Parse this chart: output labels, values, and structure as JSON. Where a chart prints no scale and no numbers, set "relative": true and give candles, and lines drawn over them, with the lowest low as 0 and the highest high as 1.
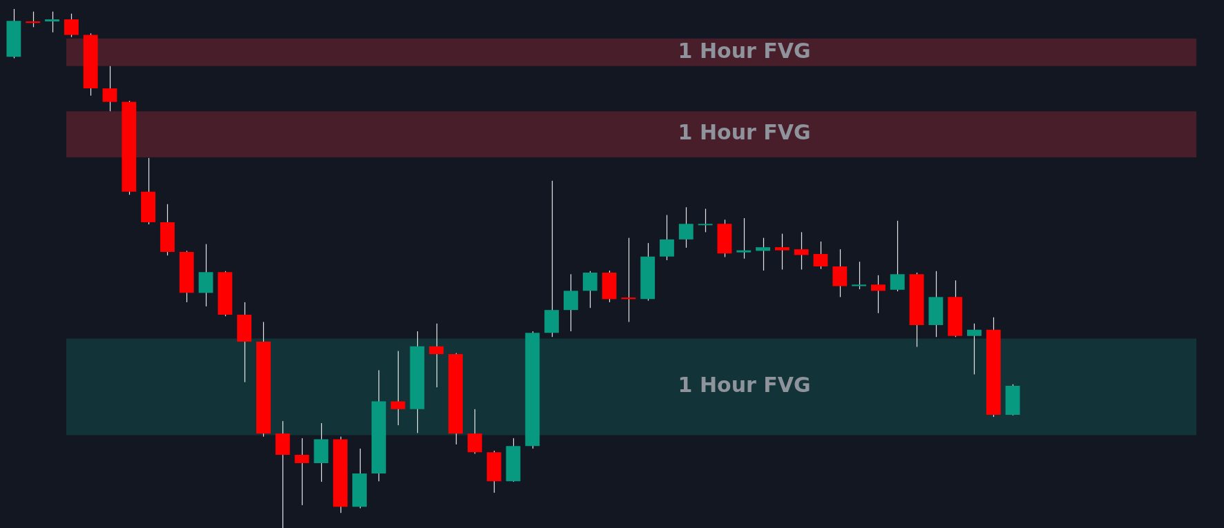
{
  "chart_data": {
    "type": "candlestick",
    "relative": true,
    "categories": [
      null,
      null,
      null,
      null,
      null,
      null,
      null,
      null,
      null,
      null,
      null,
      null,
      null,
      null,
      null,
      null,
      null,
      null,
      null,
      null,
      null,
      null,
      null,
      null,
      null,
      null,
      null,
      null,
      null,
      null,
      null,
      null,
      null,
      null,
      null,
      null,
      null,
      null,
      null,
      null,
      null,
      null,
      null,
      null,
      null,
      null,
      null,
      null,
      null,
      null,
      null,
      null,
      null
    ],
    "ohlc": [
      [
        0.908,
        1.0,
        0.905,
        0.977
      ],
      [
        0.976,
        0.995,
        0.965,
        0.973
      ],
      [
        0.976,
        0.995,
        0.955,
        0.98
      ],
      [
        0.98,
        0.991,
        0.946,
        0.95
      ],
      [
        0.95,
        0.953,
        0.833,
        0.847
      ],
      [
        0.847,
        0.89,
        0.803,
        0.821
      ],
      [
        0.821,
        0.823,
        0.642,
        0.648
      ],
      [
        0.648,
        0.713,
        0.585,
        0.589
      ],
      [
        0.589,
        0.624,
        0.525,
        0.532
      ],
      [
        0.532,
        0.534,
        0.435,
        0.453
      ],
      [
        0.453,
        0.547,
        0.427,
        0.493
      ],
      [
        0.493,
        0.495,
        0.408,
        0.411
      ],
      [
        0.411,
        0.435,
        0.281,
        0.359
      ],
      [
        0.359,
        0.397,
        0.176,
        0.182
      ],
      [
        0.182,
        0.206,
        0.0,
        0.141
      ],
      [
        0.141,
        0.173,
        0.044,
        0.125
      ],
      [
        0.125,
        0.202,
        0.089,
        0.171
      ],
      [
        0.171,
        0.176,
        0.029,
        0.041
      ],
      [
        0.041,
        0.153,
        0.038,
        0.105
      ],
      [
        0.105,
        0.304,
        0.09,
        0.244
      ],
      [
        0.244,
        0.341,
        0.198,
        0.229
      ],
      [
        0.229,
        0.379,
        0.183,
        0.35
      ],
      [
        0.35,
        0.394,
        0.271,
        0.335
      ],
      [
        0.335,
        0.337,
        0.161,
        0.182
      ],
      [
        0.182,
        0.229,
        0.143,
        0.146
      ],
      [
        0.146,
        0.149,
        0.068,
        0.09
      ],
      [
        0.09,
        0.173,
        0.089,
        0.158
      ],
      [
        0.158,
        0.379,
        0.153,
        0.376
      ],
      [
        0.376,
        0.669,
        0.368,
        0.42
      ],
      [
        0.42,
        0.489,
        0.379,
        0.457
      ],
      [
        0.457,
        0.495,
        0.424,
        0.492
      ],
      [
        0.492,
        0.496,
        0.435,
        0.441
      ],
      [
        0.444,
        0.559,
        0.397,
        0.441
      ],
      [
        0.441,
        0.549,
        0.438,
        0.523
      ],
      [
        0.523,
        0.603,
        0.516,
        0.556
      ],
      [
        0.556,
        0.618,
        0.54,
        0.586
      ],
      [
        0.585,
        0.615,
        0.57,
        0.586
      ],
      [
        0.586,
        0.594,
        0.522,
        0.529
      ],
      [
        0.531,
        0.597,
        0.519,
        0.535
      ],
      [
        0.534,
        0.559,
        0.496,
        0.541
      ],
      [
        0.541,
        0.567,
        0.498,
        0.535
      ],
      [
        0.537,
        0.57,
        0.498,
        0.526
      ],
      [
        0.528,
        0.552,
        0.499,
        0.504
      ],
      [
        0.504,
        0.537,
        0.445,
        0.466
      ],
      [
        0.466,
        0.513,
        0.46,
        0.469
      ],
      [
        0.469,
        0.487,
        0.414,
        0.457
      ],
      [
        0.459,
        0.592,
        0.456,
        0.489
      ],
      [
        0.489,
        0.492,
        0.349,
        0.391
      ],
      [
        0.391,
        0.495,
        0.368,
        0.445
      ],
      [
        0.445,
        0.477,
        0.368,
        0.37
      ],
      [
        0.37,
        0.394,
        0.296,
        0.382
      ],
      [
        0.382,
        0.406,
        0.214,
        0.218
      ],
      [
        0.218,
        0.277,
        0.217,
        0.274
      ]
    ],
    "colors": [
      "#089981",
      "#ff0000",
      "#089981",
      "#ff0000",
      "#ff0000",
      "#ff0000",
      "#ff0000",
      "#ff0000",
      "#ff0000",
      "#ff0000",
      "#089981",
      "#ff0000",
      "#ff0000",
      "#ff0000",
      "#ff0000",
      "#ff0000",
      "#089981",
      "#ff0000",
      "#089981",
      "#089981",
      "#ff0000",
      "#089981",
      "#ff0000",
      "#ff0000",
      "#ff0000",
      "#ff0000",
      "#089981",
      "#089981",
      "#089981",
      "#089981",
      "#089981",
      "#ff0000",
      "#ff0000",
      "#089981",
      "#089981",
      "#089981",
      "#089981",
      "#ff0000",
      "#089981",
      "#089981",
      "#ff0000",
      "#ff0000",
      "#ff0000",
      "#ff0000",
      "#089981",
      "#ff0000",
      "#089981",
      "#ff0000",
      "#089981",
      "#ff0000",
      "#089981",
      "#ff0000",
      "#089981"
    ],
    "bands": [
      {
        "axis": "y",
        "from": 0.89,
        "to": 0.943,
        "label": "1 Hour FVG",
        "color": "#4a1f2b"
      },
      {
        "axis": "y",
        "from": 0.714,
        "to": 0.803,
        "label": "1 Hour FVG",
        "color": "#4a1f2b"
      },
      {
        "axis": "y",
        "from": 0.179,
        "to": 0.365,
        "label": "1 Hour FVG",
        "color": "#12363a"
      }
    ],
    "legend": false
  }
}
